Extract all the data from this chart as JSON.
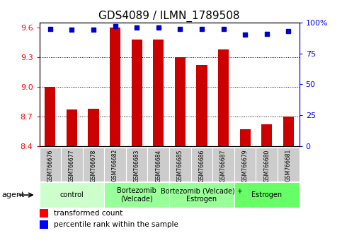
{
  "title": "GDS4089 / ILMN_1789508",
  "samples": [
    "GSM766676",
    "GSM766677",
    "GSM766678",
    "GSM766682",
    "GSM766683",
    "GSM766684",
    "GSM766685",
    "GSM766686",
    "GSM766687",
    "GSM766679",
    "GSM766680",
    "GSM766681"
  ],
  "transformed_counts": [
    9.0,
    8.77,
    8.78,
    9.6,
    9.48,
    9.48,
    9.3,
    9.22,
    9.38,
    8.57,
    8.62,
    8.7
  ],
  "percentile_ranks": [
    95,
    94,
    94,
    97,
    96,
    96,
    95,
    95,
    95,
    90,
    91,
    93
  ],
  "ylim_left": [
    8.4,
    9.65
  ],
  "ylim_right": [
    0,
    100
  ],
  "yticks_left": [
    8.4,
    8.7,
    9.0,
    9.3,
    9.6
  ],
  "yticks_right": [
    0,
    25,
    50,
    75,
    100
  ],
  "ytick_labels_right": [
    "0",
    "25",
    "50",
    "75",
    "100%"
  ],
  "bar_color": "#cc0000",
  "dot_color": "#0000cc",
  "groups": [
    {
      "label": "control",
      "start": 0,
      "end": 3,
      "color": "#ccffcc"
    },
    {
      "label": "Bortezomib\n(Velcade)",
      "start": 3,
      "end": 6,
      "color": "#99ff99"
    },
    {
      "label": "Bortezomib (Velcade) +\nEstrogen",
      "start": 6,
      "end": 9,
      "color": "#99ff99"
    },
    {
      "label": "Estrogen",
      "start": 9,
      "end": 12,
      "color": "#66ff66"
    }
  ],
  "agent_label": "agent",
  "legend_bar_label": "transformed count",
  "legend_dot_label": "percentile rank within the sample",
  "grid_lines": [
    8.7,
    9.0,
    9.3
  ],
  "bar_width": 0.5,
  "title_fontsize": 11,
  "tick_fontsize": 8,
  "sample_fontsize": 5.5,
  "group_fontsize": 7,
  "legend_fontsize": 7.5
}
